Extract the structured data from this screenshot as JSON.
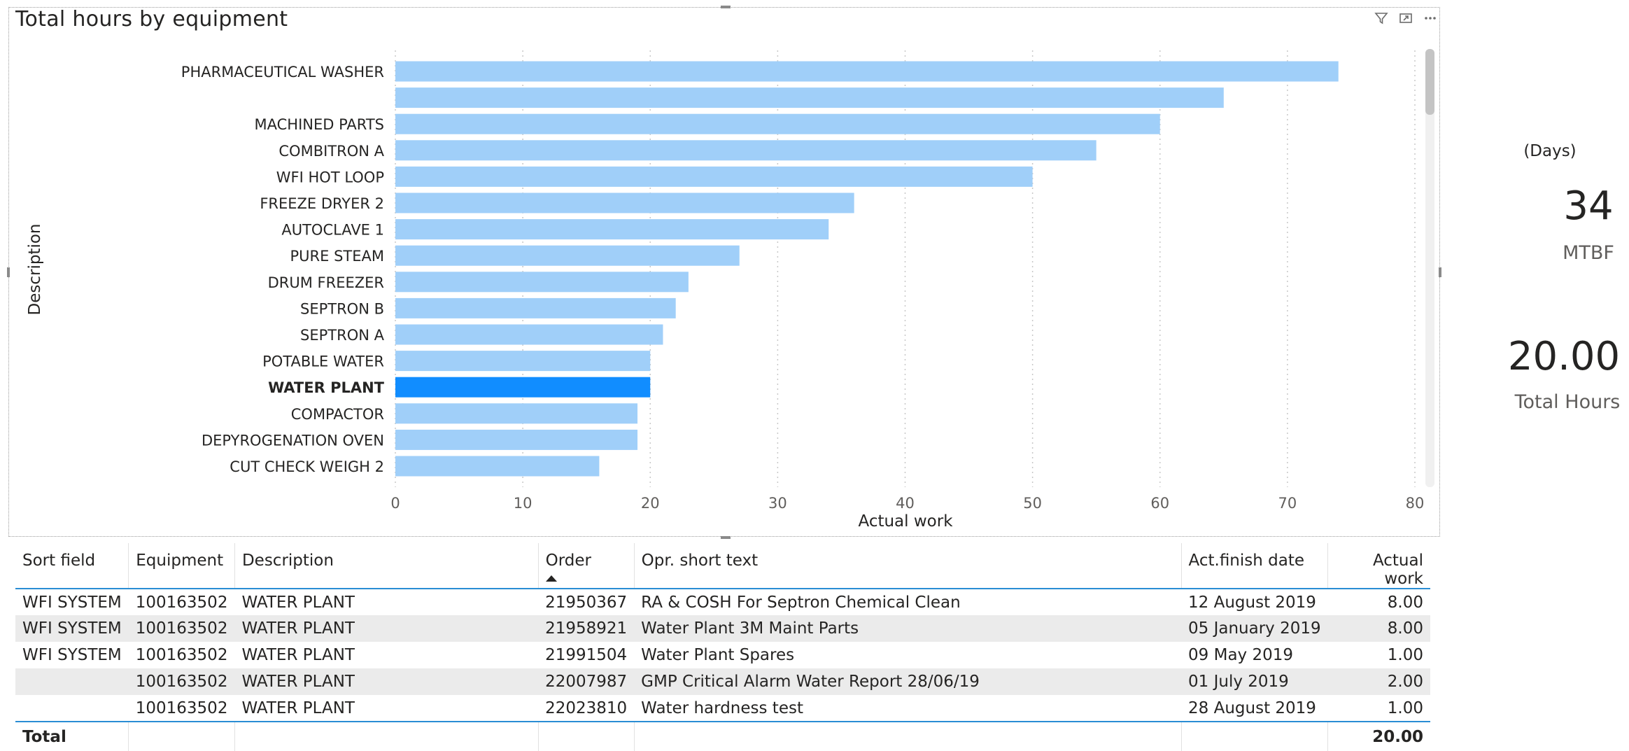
{
  "chart": {
    "title": "Total hours by equipment",
    "icons": [
      "filter-icon",
      "focus-mode-icon",
      "more-options-icon"
    ]
  },
  "chart_data": {
    "type": "bar",
    "orientation": "horizontal",
    "categories": [
      "PHARMACEUTICAL WASHER",
      "",
      "MACHINED PARTS",
      "COMBITRON A",
      "WFI HOT LOOP",
      "FREEZE DRYER 2",
      "AUTOCLAVE 1",
      "PURE STEAM",
      "DRUM FREEZER",
      "SEPTRON B",
      "SEPTRON A",
      "POTABLE WATER",
      "WATER PLANT",
      "COMPACTOR",
      "DEPYROGENATION OVEN",
      "CUT CHECK WEIGH 2"
    ],
    "values": [
      74,
      65,
      60,
      55,
      50,
      36,
      34,
      27,
      23,
      22,
      21,
      20,
      20,
      19,
      19,
      16
    ],
    "highlighted_category": "WATER PLANT",
    "xlabel": "Actual work",
    "ylabel": "Description",
    "xlim": [
      0,
      80
    ],
    "xticks": [
      "0",
      "10",
      "20",
      "30",
      "40",
      "50",
      "60",
      "70",
      "80"
    ],
    "grid": "vertical-dotted",
    "colors": {
      "bar": "#a0cff9",
      "highlight": "#118dff",
      "grid": "#c8c8c8"
    }
  },
  "cards": {
    "mtbf": {
      "unit": "(Days)",
      "value": "34",
      "label": "MTBF"
    },
    "total_hours": {
      "value": "20.00",
      "label": "Total Hours"
    }
  },
  "table": {
    "columns": [
      "Sort field",
      "Equipment",
      "Description",
      "Order",
      "Opr. short text",
      "Act.finish date",
      "Actual work"
    ],
    "sorted_column": "Order",
    "rows": [
      [
        "WFI SYSTEM",
        "100163502",
        "WATER PLANT",
        "21950367",
        "RA & COSH For Septron Chemical Clean",
        "12 August 2019",
        "8.00"
      ],
      [
        "WFI SYSTEM",
        "100163502",
        "WATER PLANT",
        "21958921",
        "Water Plant 3M Maint Parts",
        "05 January 2019",
        "8.00"
      ],
      [
        "WFI SYSTEM",
        "100163502",
        "WATER PLANT",
        "21991504",
        "Water Plant Spares",
        "09 May 2019",
        "1.00"
      ],
      [
        "",
        "100163502",
        "WATER PLANT",
        "22007987",
        "GMP Critical Alarm Water Report 28/06/19",
        "01 July 2019",
        "2.00"
      ],
      [
        "",
        "100163502",
        "WATER PLANT",
        "22023810",
        "Water hardness test",
        "28 August 2019",
        "1.00"
      ]
    ],
    "total_label": "Total",
    "total_value": "20.00"
  }
}
